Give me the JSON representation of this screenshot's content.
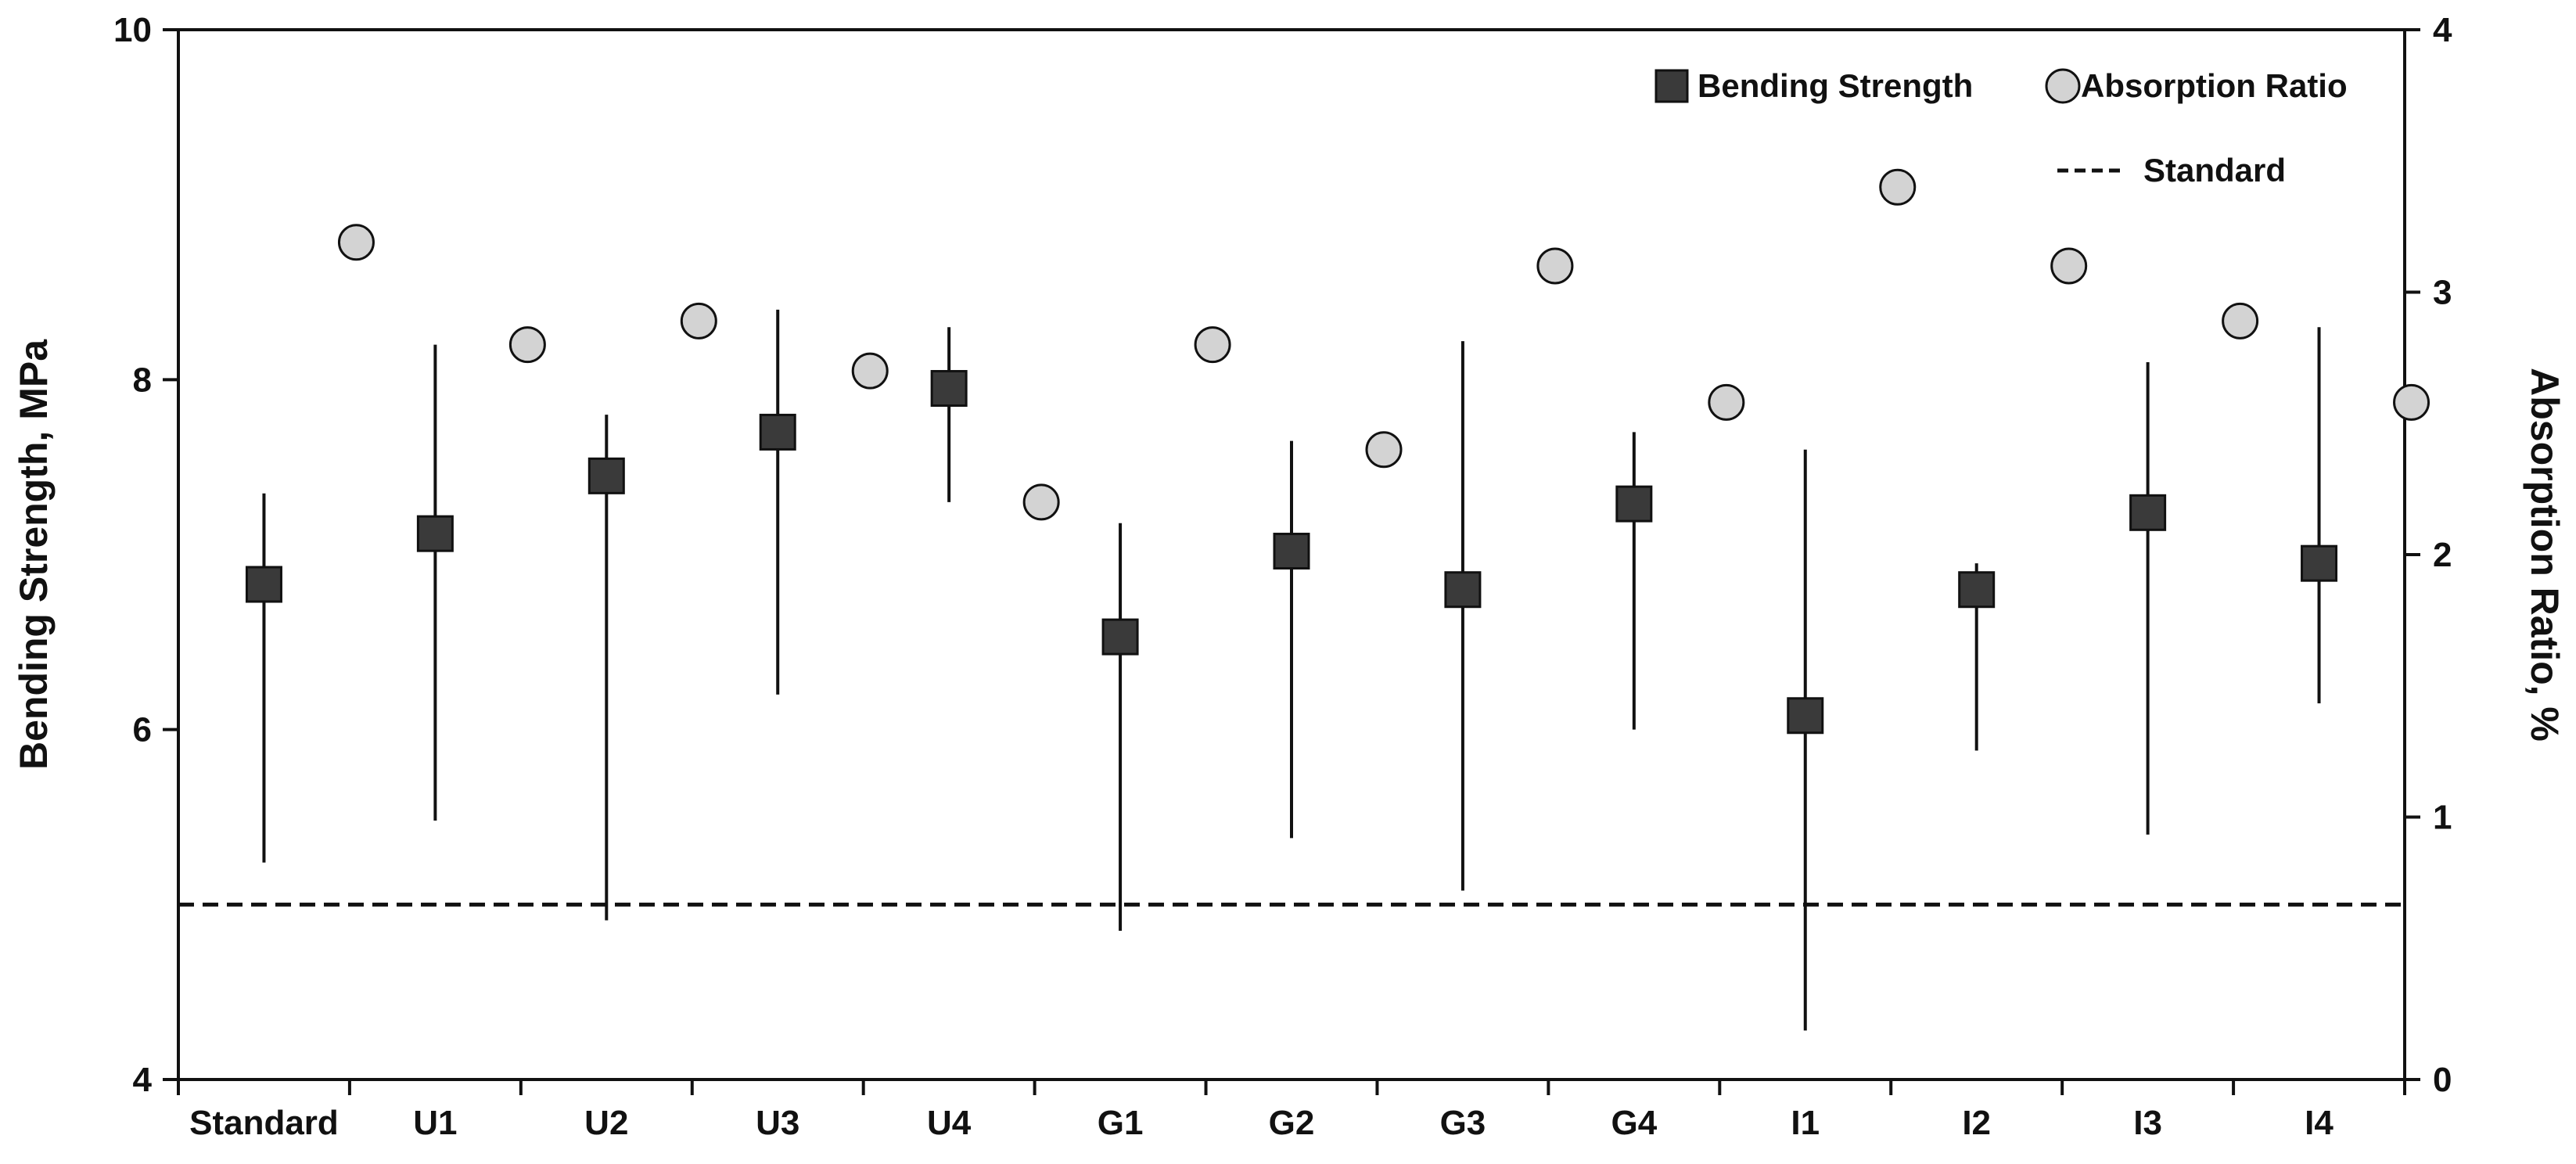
{
  "chart_data": {
    "type": "scatter",
    "title": "",
    "categories": [
      "Standard",
      "U1",
      "U2",
      "U3",
      "U4",
      "G1",
      "G2",
      "G3",
      "G4",
      "I1",
      "I2",
      "I3",
      "I4"
    ],
    "y_left": {
      "label": "Bending Strength, MPa",
      "range": [
        4,
        10
      ],
      "ticks": [
        "4",
        "6",
        "8",
        "10"
      ]
    },
    "y_right": {
      "label": "Absorption Ratio, %",
      "range": [
        0,
        4
      ],
      "ticks": [
        "0",
        "1",
        "2",
        "3",
        "4"
      ]
    },
    "series": [
      {
        "name": "Bending Strength",
        "axis": "left",
        "marker": "square",
        "color": "#3a3a3a",
        "values": [
          6.83,
          7.12,
          7.45,
          7.7,
          7.95,
          6.53,
          7.02,
          6.8,
          7.29,
          6.08,
          6.8,
          7.24,
          6.95
        ],
        "err_low": [
          5.24,
          5.48,
          4.91,
          6.2,
          7.3,
          4.85,
          5.38,
          5.08,
          6.0,
          4.28,
          5.88,
          5.4,
          6.15
        ],
        "err_high": [
          7.35,
          8.2,
          7.8,
          8.4,
          8.3,
          7.18,
          7.65,
          8.22,
          7.7,
          7.6,
          6.95,
          8.1,
          8.3
        ]
      },
      {
        "name": "Absorption Ratio",
        "axis": "right",
        "marker": "circle",
        "color": "#d3d3d3",
        "values": [
          3.19,
          2.8,
          2.89,
          2.7,
          2.2,
          2.8,
          2.4,
          3.1,
          2.58,
          3.4,
          3.1,
          2.89,
          2.58
        ]
      }
    ],
    "reference_line": {
      "name": "Standard",
      "axis": "left",
      "value": 5.0,
      "style": "dashed"
    },
    "legend": {
      "position": "top-right",
      "entries": [
        "Bending Strength",
        "Absorption Ratio",
        "Standard"
      ]
    },
    "grid": false
  }
}
